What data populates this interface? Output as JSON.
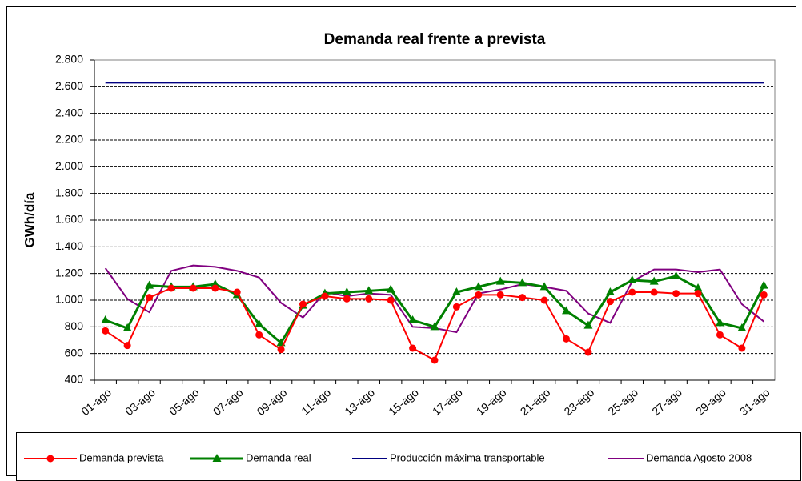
{
  "chart_data": {
    "type": "line",
    "title": "Demanda real frente a prevista",
    "ylabel": "GWh/día",
    "categories": [
      "01-ago",
      null,
      "03-ago",
      null,
      "05-ago",
      null,
      "07-ago",
      null,
      "09-ago",
      null,
      "11-ago",
      null,
      "13-ago",
      null,
      "15-ago",
      null,
      "17-ago",
      null,
      "19-ago",
      null,
      "21-ago",
      null,
      "23-ago",
      null,
      "25-ago",
      null,
      "27-ago",
      null,
      "29-ago",
      null,
      "31-ago"
    ],
    "series": [
      {
        "name": "Demanda prevista",
        "color": "#ff0000",
        "marker": "circle",
        "values": [
          770,
          660,
          1020,
          1090,
          1090,
          1090,
          1060,
          740,
          630,
          970,
          1030,
          1010,
          1010,
          1000,
          640,
          550,
          950,
          1040,
          1040,
          1020,
          1000,
          710,
          610,
          990,
          1060,
          1060,
          1050,
          1050,
          740,
          640,
          1040
        ]
      },
      {
        "name": "Demanda real",
        "color": "#008000",
        "marker": "triangle",
        "values": [
          850,
          790,
          1110,
          1100,
          1100,
          1120,
          1040,
          820,
          680,
          960,
          1050,
          1060,
          1070,
          1080,
          850,
          800,
          1060,
          1100,
          1140,
          1130,
          1100,
          920,
          810,
          1060,
          1150,
          1140,
          1180,
          1090,
          830,
          790,
          1110
        ]
      },
      {
        "name": "Producción máxima transportable",
        "color": "#000080",
        "values": [
          2630,
          2630,
          2630,
          2630,
          2630,
          2630,
          2630,
          2630,
          2630,
          2630,
          2630,
          2630,
          2630,
          2630,
          2630,
          2630,
          2630,
          2630,
          2630,
          2630,
          2630,
          2630,
          2630,
          2630,
          2630,
          2630,
          2630,
          2630,
          2630,
          2630,
          2630
        ]
      },
      {
        "name": "Demanda Agosto 2008",
        "color": "#800080",
        "values": [
          1240,
          1010,
          910,
          1220,
          1260,
          1250,
          1220,
          1170,
          980,
          870,
          1060,
          1030,
          1050,
          1040,
          800,
          790,
          760,
          1050,
          1080,
          1120,
          1100,
          1070,
          900,
          830,
          1140,
          1230,
          1230,
          1210,
          1230,
          970,
          840
        ]
      }
    ],
    "ylim": [
      400,
      2800
    ],
    "yticks": [
      400,
      600,
      800,
      {
        "value": 1000,
        "label": "1.000"
      },
      {
        "value": 1200,
        "label": "1.200"
      },
      {
        "value": 1400,
        "label": "1.400"
      },
      {
        "value": 1600,
        "label": "1.600"
      },
      {
        "value": 1800,
        "label": "1.800"
      },
      {
        "value": 2000,
        "label": "2.000"
      },
      {
        "value": 2200,
        "label": "2.200"
      },
      {
        "value": 2400,
        "label": "2.400"
      },
      {
        "value": 2600,
        "label": "2.600"
      },
      {
        "value": 2800,
        "label": "2.800"
      }
    ],
    "grid": true,
    "legend": "bottom"
  }
}
